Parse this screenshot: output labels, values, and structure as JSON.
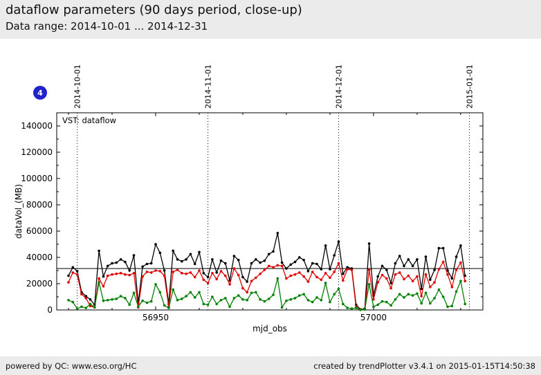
{
  "header": {
    "title": "dataflow parameters (90 days period, close-up)",
    "subtitle": "Data range: 2014-10-01 ... 2014-12-31"
  },
  "badge": {
    "label": "4",
    "color": "#2222cc"
  },
  "footer": {
    "left": "powered by QC: www.eso.org/HC",
    "right": "created by trendPlotter v3.4.1 on 2015-01-15T14:50:38"
  },
  "chart_data": {
    "type": "line",
    "title_inside": "VST: dataflow",
    "xlabel": "mjd_obs",
    "ylabel": "dataVol_(MB)",
    "xlim": [
      56927.3,
      57025.1
    ],
    "ylim": [
      0,
      150000
    ],
    "x_major_ticks": [
      {
        "value": 56950,
        "label": "56950"
      },
      {
        "value": 57000,
        "label": "57000"
      }
    ],
    "x_minor_ticks": [
      56930,
      56940,
      56960,
      56970,
      56980,
      56990,
      57010,
      57020
    ],
    "y_major_ticks": [
      {
        "value": 0,
        "label": "0"
      },
      {
        "value": 20000,
        "label": "20000"
      },
      {
        "value": 40000,
        "label": "40000"
      },
      {
        "value": 60000,
        "label": "60000"
      },
      {
        "value": 80000,
        "label": "80000"
      },
      {
        "value": 100000,
        "label": "100000"
      },
      {
        "value": 120000,
        "label": "120000"
      },
      {
        "value": 140000,
        "label": "140000"
      }
    ],
    "y_minor_step": 10000,
    "reference_line_y": 31500,
    "date_gridlines": [
      {
        "mjd": 56932,
        "label": "2014-10-01"
      },
      {
        "mjd": 56962,
        "label": "2014-11-01"
      },
      {
        "mjd": 56992,
        "label": "2014-12-01"
      },
      {
        "mjd": 57022,
        "label": "2015-01-01"
      }
    ],
    "x_start": 56930,
    "x_step": 1,
    "grid": "off",
    "legend": "none",
    "series": [
      {
        "name": "black",
        "color": "#000000",
        "values": [
          26000,
          32500,
          29500,
          13500,
          10500,
          8000,
          4000,
          45000,
          25500,
          33500,
          35500,
          36000,
          38500,
          36500,
          30000,
          41500,
          5000,
          33000,
          35000,
          35500,
          50000,
          43500,
          30000,
          4500,
          45000,
          38500,
          37000,
          38500,
          42500,
          35000,
          44000,
          28000,
          25000,
          38500,
          28500,
          37500,
          35500,
          22500,
          41000,
          38000,
          25000,
          21500,
          35500,
          38500,
          36000,
          37500,
          42500,
          44500,
          58500,
          36000,
          31500,
          34500,
          36500,
          40000,
          38000,
          29500,
          35500,
          35000,
          31000,
          49000,
          31000,
          41500,
          52000,
          27500,
          32500,
          31500,
          4000,
          500,
          1000,
          50500,
          11000,
          25500,
          33500,
          30500,
          20500,
          35500,
          41000,
          33500,
          38500,
          33500,
          38500,
          16000,
          40500,
          23000,
          30500,
          47000,
          47000,
          30000,
          24000,
          40500,
          49000,
          26000
        ]
      },
      {
        "name": "red",
        "color": "#e00000",
        "values": [
          21000,
          28500,
          27000,
          12000,
          9000,
          3000,
          2000,
          24000,
          18000,
          26000,
          27000,
          27500,
          28000,
          27000,
          26500,
          28000,
          2000,
          25500,
          29000,
          28500,
          30000,
          29500,
          26000,
          2500,
          29000,
          30500,
          28000,
          27500,
          28500,
          25000,
          30000,
          23000,
          20500,
          28000,
          23500,
          29500,
          26000,
          19500,
          31500,
          26500,
          16500,
          13500,
          22000,
          24500,
          27500,
          30500,
          33500,
          32500,
          34000,
          33500,
          24000,
          26000,
          27000,
          28500,
          25500,
          21500,
          29000,
          25000,
          23000,
          28000,
          24500,
          29000,
          35500,
          22500,
          31000,
          30500,
          2000,
          300,
          500,
          30500,
          8000,
          21000,
          26500,
          24000,
          16500,
          27000,
          28500,
          23500,
          26000,
          22000,
          25500,
          10500,
          27000,
          17500,
          21000,
          31000,
          36500,
          27000,
          17500,
          30500,
          36000,
          22000
        ]
      },
      {
        "name": "green",
        "color": "#008000",
        "values": [
          7500,
          6000,
          1000,
          2500,
          1500,
          4500,
          2000,
          21000,
          7000,
          7500,
          8000,
          8500,
          10500,
          9000,
          4000,
          13000,
          2500,
          7000,
          5500,
          6500,
          19500,
          13500,
          3500,
          1500,
          15500,
          7500,
          8500,
          10500,
          13500,
          9500,
          13500,
          4500,
          4000,
          10000,
          4500,
          7500,
          9000,
          2500,
          9000,
          11000,
          8000,
          7500,
          13000,
          13500,
          8000,
          6500,
          8500,
          11500,
          24000,
          2000,
          7000,
          8000,
          9000,
          11000,
          12000,
          7500,
          6000,
          9500,
          7500,
          20500,
          6000,
          12000,
          16000,
          4500,
          1500,
          1000,
          1500,
          100,
          400,
          19500,
          2500,
          4000,
          6500,
          6000,
          3500,
          8000,
          12000,
          9500,
          12000,
          11000,
          12500,
          5000,
          13000,
          5000,
          9000,
          15500,
          10000,
          2500,
          3000,
          14000,
          22000,
          4500
        ]
      }
    ]
  }
}
